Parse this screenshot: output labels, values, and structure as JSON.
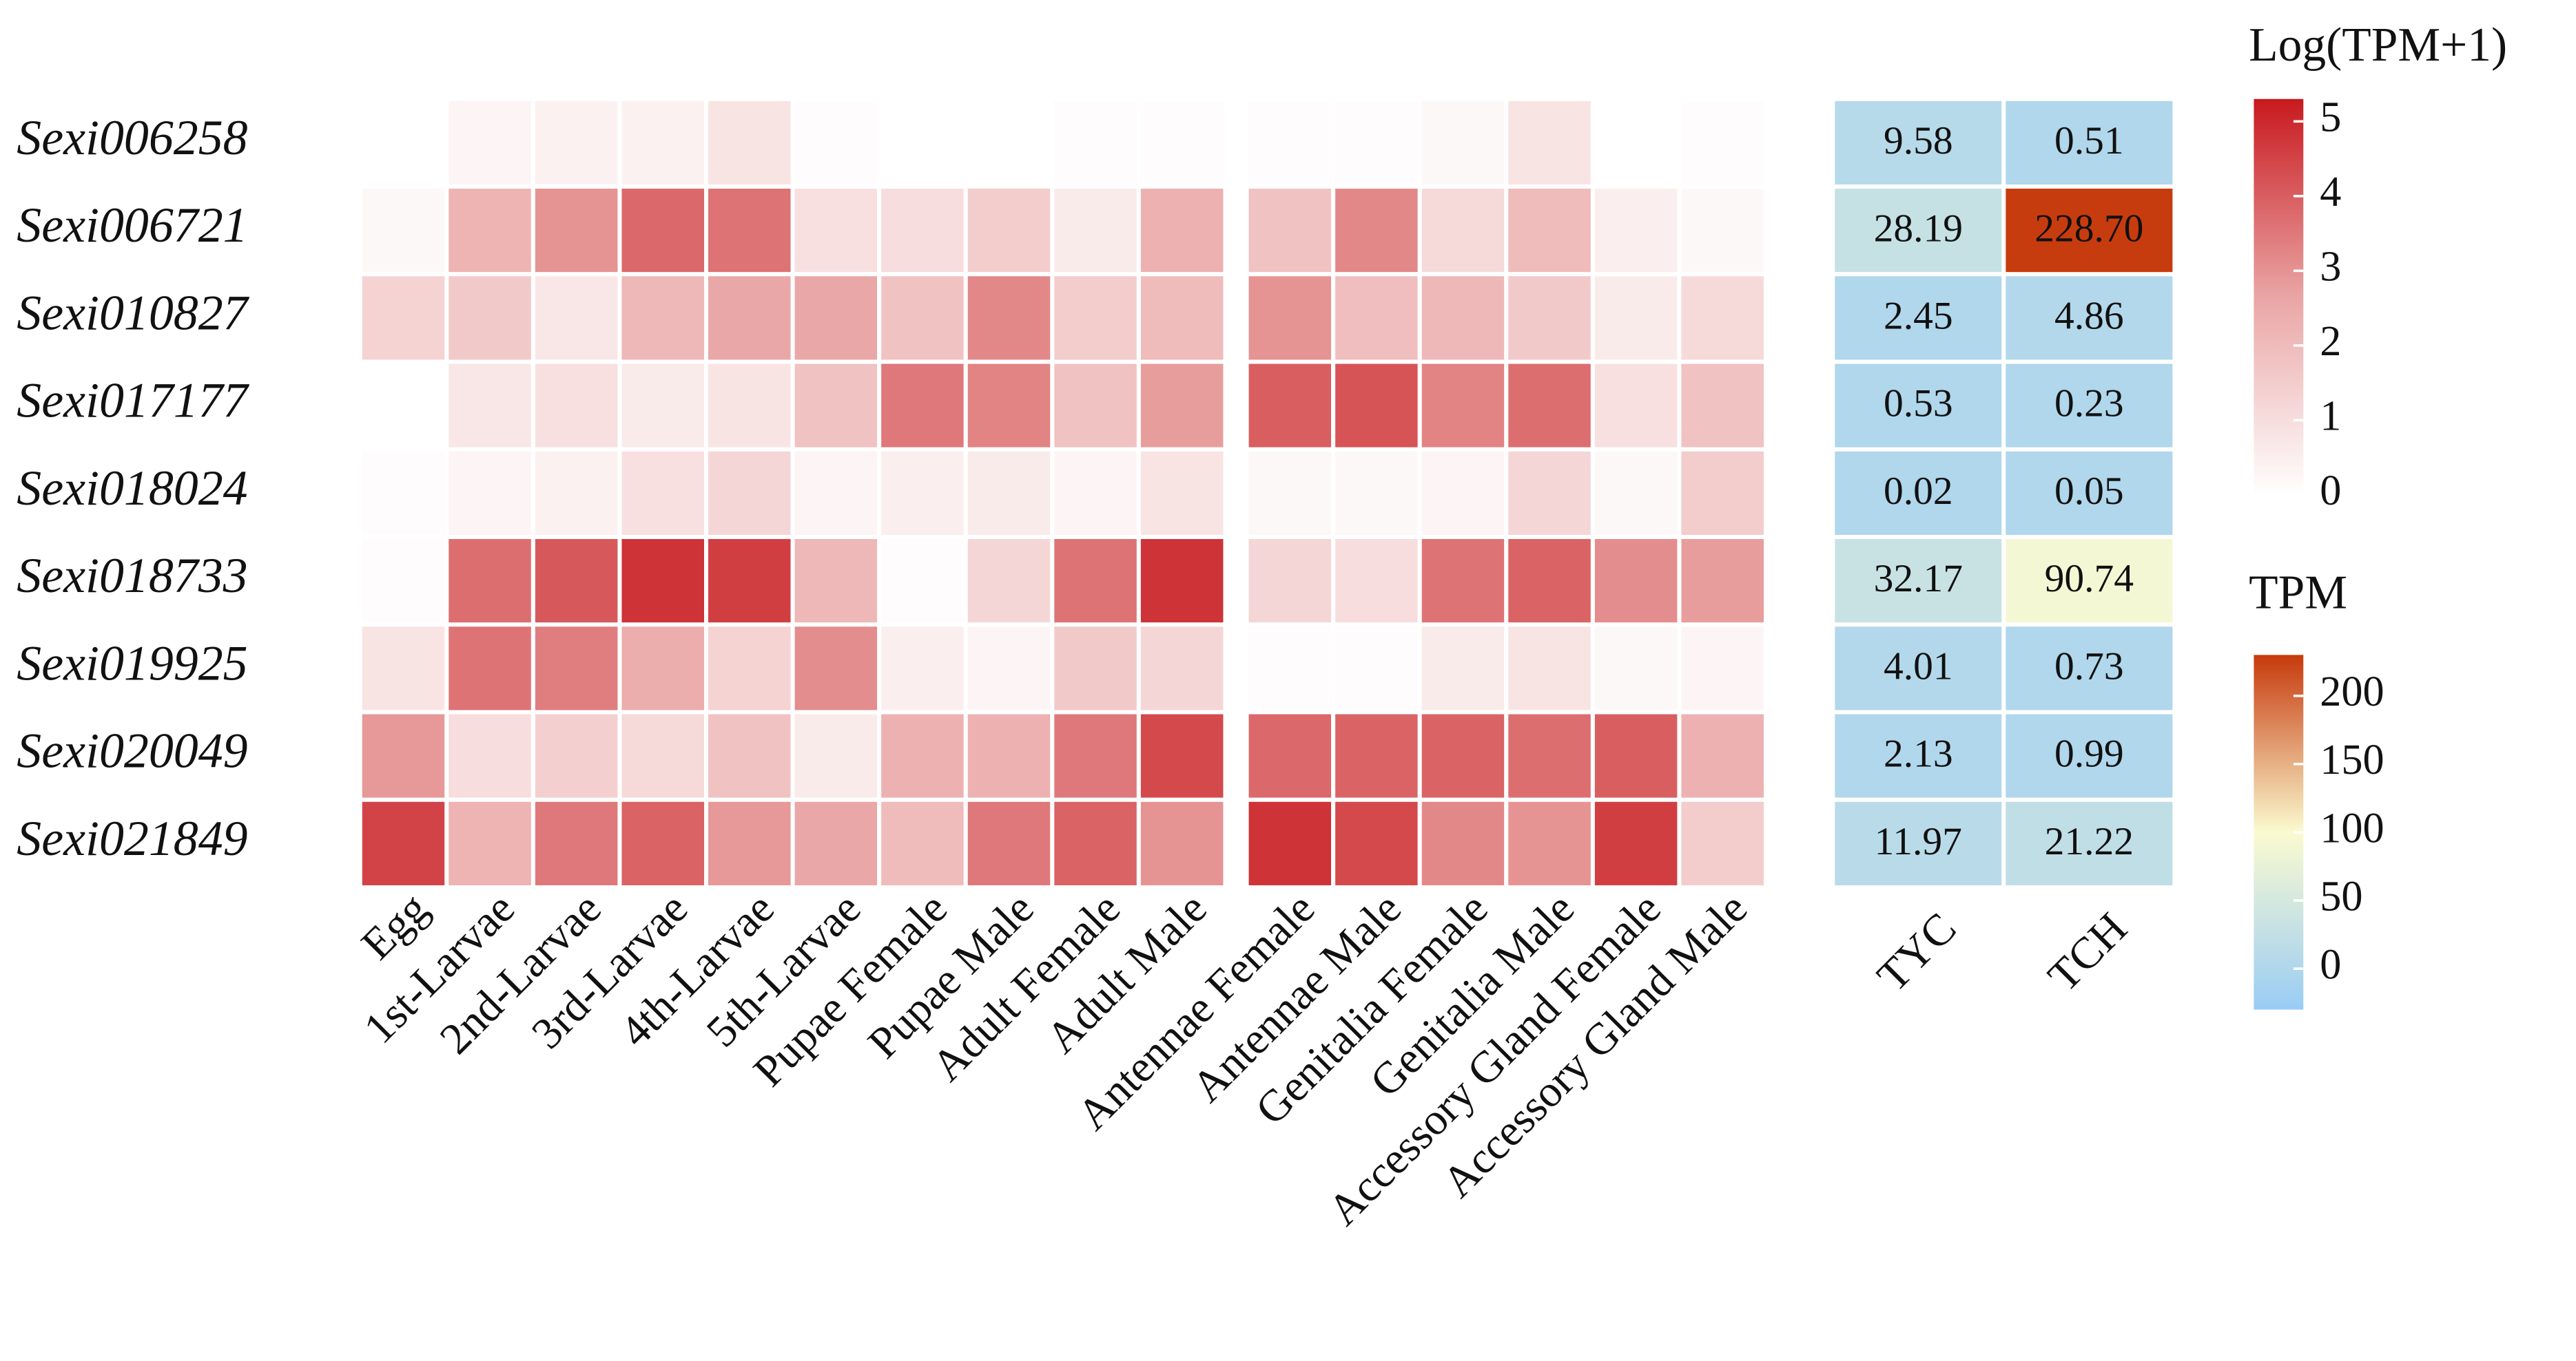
{
  "chart_data": [
    {
      "type": "heatmap",
      "rows": [
        "Sexi006258",
        "Sexi006721",
        "Sexi010827",
        "Sexi017177",
        "Sexi018024",
        "Sexi018733",
        "Sexi019925",
        "Sexi020049",
        "Sexi021849"
      ],
      "columns": [
        "Egg",
        "1st-Larvae",
        "2nd-Larvae",
        "3rd-Larvae",
        "4th-Larvae",
        "5th-Larvae",
        "Pupae Female",
        "Pupae Male",
        "Adult Female",
        "Adult Male",
        "Antennae Female",
        "Antennae Male",
        "Genitalia Female",
        "Genitalia Male",
        "Accessory Gland Female",
        "Accessory Gland Male"
      ],
      "values": [
        [
          0,
          0.3,
          0.4,
          0.4,
          0.8,
          0.1,
          0,
          0,
          0.1,
          0.1,
          0.1,
          0.1,
          0.2,
          0.8,
          0,
          0.1
        ],
        [
          0.2,
          2.2,
          3.0,
          3.8,
          3.6,
          0.9,
          1.0,
          1.5,
          0.6,
          2.3,
          1.8,
          3.2,
          1.1,
          2.0,
          0.5,
          0.2
        ],
        [
          1.3,
          1.6,
          0.7,
          2.1,
          2.6,
          2.6,
          1.8,
          3.2,
          1.5,
          2.0,
          3.0,
          1.9,
          2.1,
          1.6,
          0.6,
          1.1
        ],
        [
          0,
          0.7,
          0.9,
          0.6,
          0.8,
          1.8,
          3.5,
          3.3,
          1.8,
          2.8,
          4.0,
          4.2,
          3.3,
          3.7,
          0.9,
          1.8
        ],
        [
          0.1,
          0.3,
          0.4,
          0.9,
          1.2,
          0.3,
          0.5,
          0.6,
          0.3,
          0.8,
          0.2,
          0.2,
          0.3,
          1.2,
          0.2,
          1.5
        ],
        [
          0.1,
          3.7,
          4.1,
          4.8,
          4.6,
          2.1,
          0.1,
          1.2,
          3.6,
          4.8,
          1.2,
          1.0,
          3.6,
          3.9,
          3.1,
          2.8
        ],
        [
          0.8,
          3.6,
          3.4,
          2.4,
          1.3,
          3.1,
          0.5,
          0.3,
          1.6,
          1.2,
          0.1,
          0.1,
          0.6,
          0.8,
          0.2,
          0.3
        ],
        [
          2.9,
          1.0,
          1.4,
          1.1,
          1.8,
          0.6,
          2.3,
          2.3,
          3.5,
          4.4,
          3.8,
          3.9,
          3.9,
          3.7,
          4.0,
          2.3
        ],
        [
          4.5,
          2.2,
          3.5,
          3.9,
          2.9,
          2.6,
          2.0,
          3.5,
          3.9,
          3.0,
          4.8,
          4.4,
          3.2,
          3.0,
          4.6,
          1.5
        ]
      ],
      "zlim": [
        0,
        5.3
      ],
      "zticks": [
        0,
        1,
        2,
        3,
        4,
        5
      ],
      "colormap": [
        "#ffffff",
        "#eaa5a5",
        "#c8191e"
      ],
      "colorbar_title": "Log(TPM+1)"
    },
    {
      "type": "heatmap",
      "columns": [
        "TYC",
        "TCH"
      ],
      "values": [
        [
          9.58,
          0.51
        ],
        [
          28.19,
          228.7
        ],
        [
          2.45,
          4.86
        ],
        [
          0.53,
          0.23
        ],
        [
          0.02,
          0.05
        ],
        [
          32.17,
          90.74
        ],
        [
          4.01,
          0.73
        ],
        [
          2.13,
          0.99
        ],
        [
          11.97,
          21.22
        ]
      ],
      "value_labels": [
        [
          "9.58",
          "0.51"
        ],
        [
          "28.19",
          "228.70"
        ],
        [
          "2.45",
          "4.86"
        ],
        [
          "0.53",
          "0.23"
        ],
        [
          "0.02",
          "0.05"
        ],
        [
          "32.17",
          "90.74"
        ],
        [
          "4.01",
          "0.73"
        ],
        [
          "2.13",
          "0.99"
        ],
        [
          "11.97",
          "21.22"
        ]
      ],
      "zlim": [
        -30,
        230
      ],
      "zticks": [
        0,
        50,
        100,
        150,
        200
      ],
      "colormap": [
        "#99ccf5",
        "#fbfad0",
        "#c63a0c"
      ],
      "colorbar_title": "TPM"
    }
  ]
}
